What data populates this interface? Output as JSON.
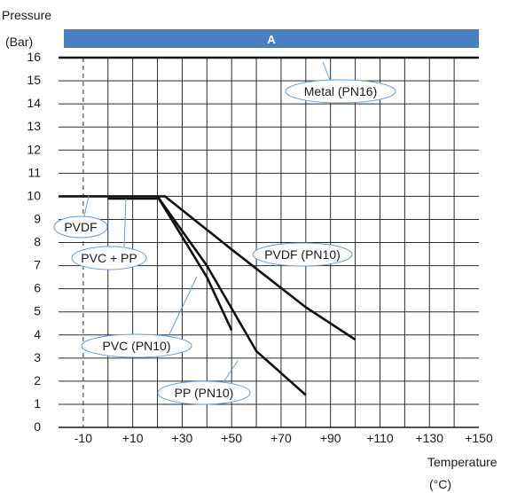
{
  "chart_data": {
    "type": "line",
    "ylabel_line1": "Pressure",
    "ylabel_line2": "(Bar)",
    "xlabel_line1": "Temperature",
    "xlabel_line2": "(°C)",
    "xlim": [
      -20,
      150
    ],
    "ylim": [
      0,
      16
    ],
    "grid": true,
    "x_tick_values": [
      -10,
      10,
      30,
      50,
      70,
      90,
      110,
      130,
      150
    ],
    "x_tick_labels": [
      "-10",
      "+10",
      "+30",
      "+50",
      "+70",
      "+90",
      "+110",
      "+130",
      "+150"
    ],
    "y_tick_values": [
      0,
      1,
      2,
      3,
      4,
      5,
      6,
      7,
      8,
      9,
      10,
      11,
      12,
      13,
      14,
      15,
      16
    ],
    "y_tick_labels": [
      "0",
      "1",
      "2",
      "3",
      "4",
      "5",
      "6",
      "7",
      "8",
      "9",
      "10",
      "11",
      "12",
      "13",
      "14",
      "15",
      "16"
    ],
    "band": {
      "label": "A",
      "color": "#4a7fc1"
    },
    "series": [
      {
        "name": "Metal (PN16)",
        "x": [
          -20,
          150
        ],
        "y": [
          16,
          16
        ]
      },
      {
        "name": "PVDF",
        "x": [
          -20,
          20
        ],
        "y": [
          10,
          10
        ]
      },
      {
        "name": "PVC + PP",
        "x": [
          0,
          20
        ],
        "y": [
          9.9,
          9.9
        ]
      },
      {
        "name": "PVDF (PN10)",
        "x": [
          20,
          23,
          50,
          80,
          100
        ],
        "y": [
          10,
          10,
          7.7,
          5.2,
          3.8
        ]
      },
      {
        "name": "PVC (PN10)",
        "x": [
          20,
          40,
          50
        ],
        "y": [
          10,
          6.5,
          4.2
        ]
      },
      {
        "name": "PP (PN10)",
        "x": [
          20,
          40,
          60,
          80
        ],
        "y": [
          10,
          7,
          3.3,
          1.4
        ]
      }
    ]
  }
}
